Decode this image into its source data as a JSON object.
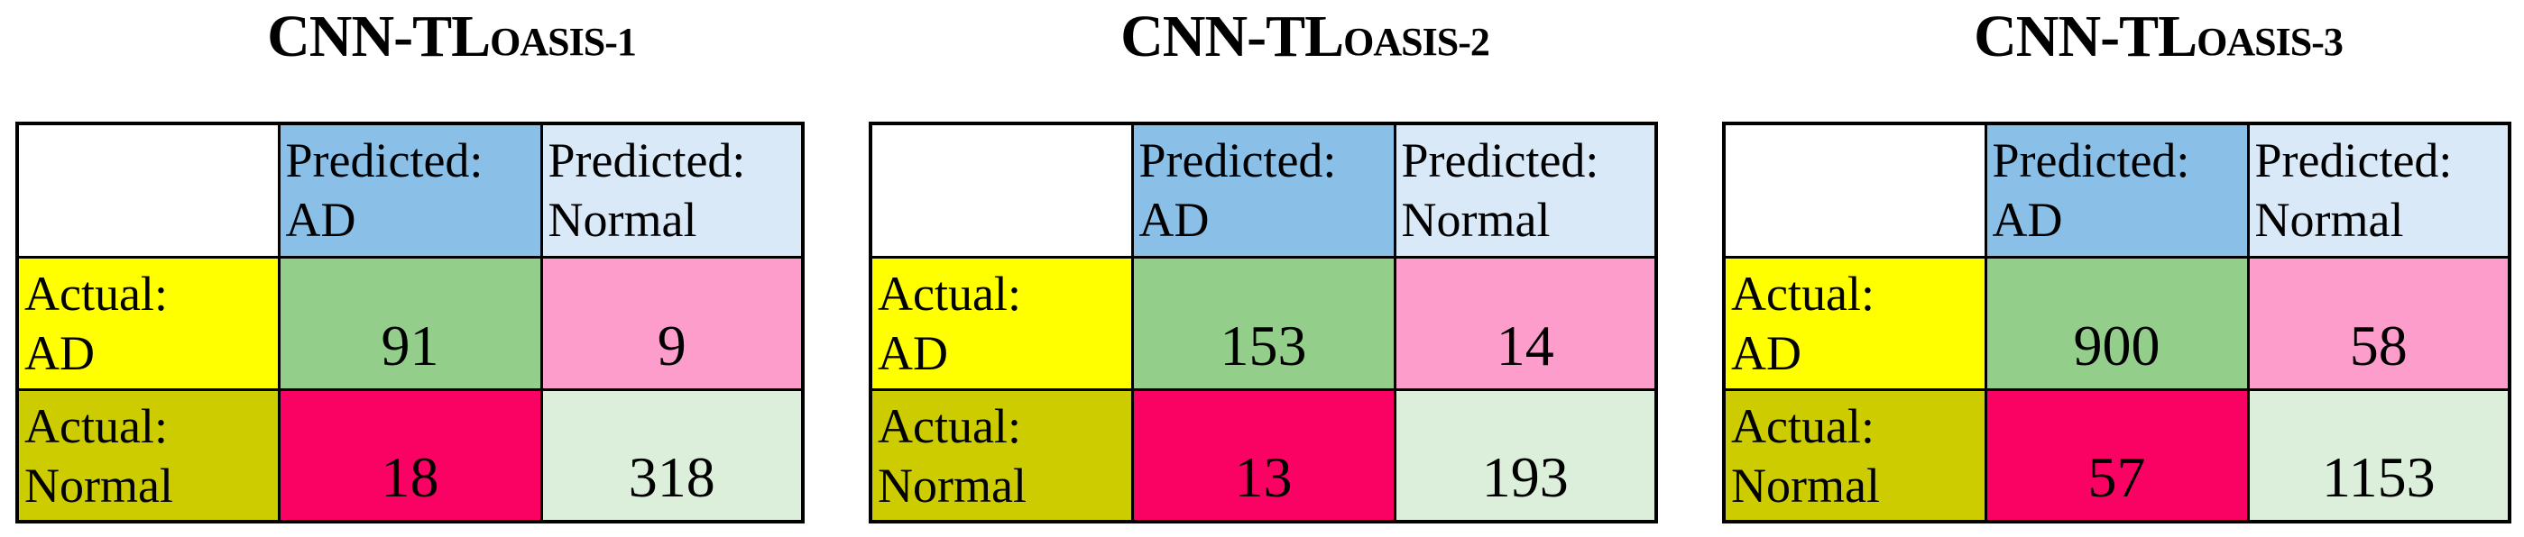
{
  "colors": {
    "pred-ad": "#8AC0E8",
    "pred-normal": "#D9E9F7",
    "actual-ad": "#FFFF00",
    "actual-normal": "#CCCC00",
    "tp": "#93CF8B",
    "fn": "#FC9DCB",
    "fp": "#FA0263",
    "tn": "#DBEFDB",
    "border": "#000000",
    "text": "#000000",
    "bg": "#FFFFFF"
  },
  "matrices": [
    {
      "title": {
        "main": "CNN-TL",
        "subscript": "OASIS-1"
      },
      "col_headers": [
        {
          "line1": "Predicted:",
          "line2": "AD"
        },
        {
          "line1": "Predicted:",
          "line2": "Normal"
        }
      ],
      "row_headers": [
        {
          "line1": "Actual:",
          "line2": "AD"
        },
        {
          "line1": "Actual:",
          "line2": "Normal"
        }
      ],
      "values": [
        [
          "91",
          "9"
        ],
        [
          "18",
          "318"
        ]
      ]
    },
    {
      "title": {
        "main": "CNN-TL",
        "subscript": "OASIS-2"
      },
      "col_headers": [
        {
          "line1": "Predicted:",
          "line2": "AD"
        },
        {
          "line1": "Predicted:",
          "line2": "Normal"
        }
      ],
      "row_headers": [
        {
          "line1": "Actual:",
          "line2": "AD"
        },
        {
          "line1": "Actual:",
          "line2": "Normal"
        }
      ],
      "values": [
        [
          "153",
          "14"
        ],
        [
          "13",
          "193"
        ]
      ]
    },
    {
      "title": {
        "main": "CNN-TL",
        "subscript": "OASIS-3"
      },
      "col_headers": [
        {
          "line1": "Predicted:",
          "line2": "AD"
        },
        {
          "line1": "Predicted:",
          "line2": "Normal"
        }
      ],
      "row_headers": [
        {
          "line1": "Actual:",
          "line2": "AD"
        },
        {
          "line1": "Actual:",
          "line2": "Normal"
        }
      ],
      "values": [
        [
          "900",
          "58"
        ],
        [
          "57",
          "1153"
        ]
      ]
    }
  ],
  "chart_data": [
    {
      "type": "table",
      "subtype": "confusion-matrix",
      "title": "CNN-TL OASIS-1",
      "columns": [
        "Predicted: AD",
        "Predicted: Normal"
      ],
      "rows": [
        "Actual: AD",
        "Actual: Normal"
      ],
      "values": [
        [
          91,
          9
        ],
        [
          18,
          318
        ]
      ]
    },
    {
      "type": "table",
      "subtype": "confusion-matrix",
      "title": "CNN-TL OASIS-2",
      "columns": [
        "Predicted: AD",
        "Predicted: Normal"
      ],
      "rows": [
        "Actual: AD",
        "Actual: Normal"
      ],
      "values": [
        [
          153,
          14
        ],
        [
          13,
          193
        ]
      ]
    },
    {
      "type": "table",
      "subtype": "confusion-matrix",
      "title": "CNN-TL OASIS-3",
      "columns": [
        "Predicted: AD",
        "Predicted: Normal"
      ],
      "rows": [
        "Actual: AD",
        "Actual: Normal"
      ],
      "values": [
        [
          900,
          58
        ],
        [
          57,
          1153
        ]
      ]
    }
  ]
}
